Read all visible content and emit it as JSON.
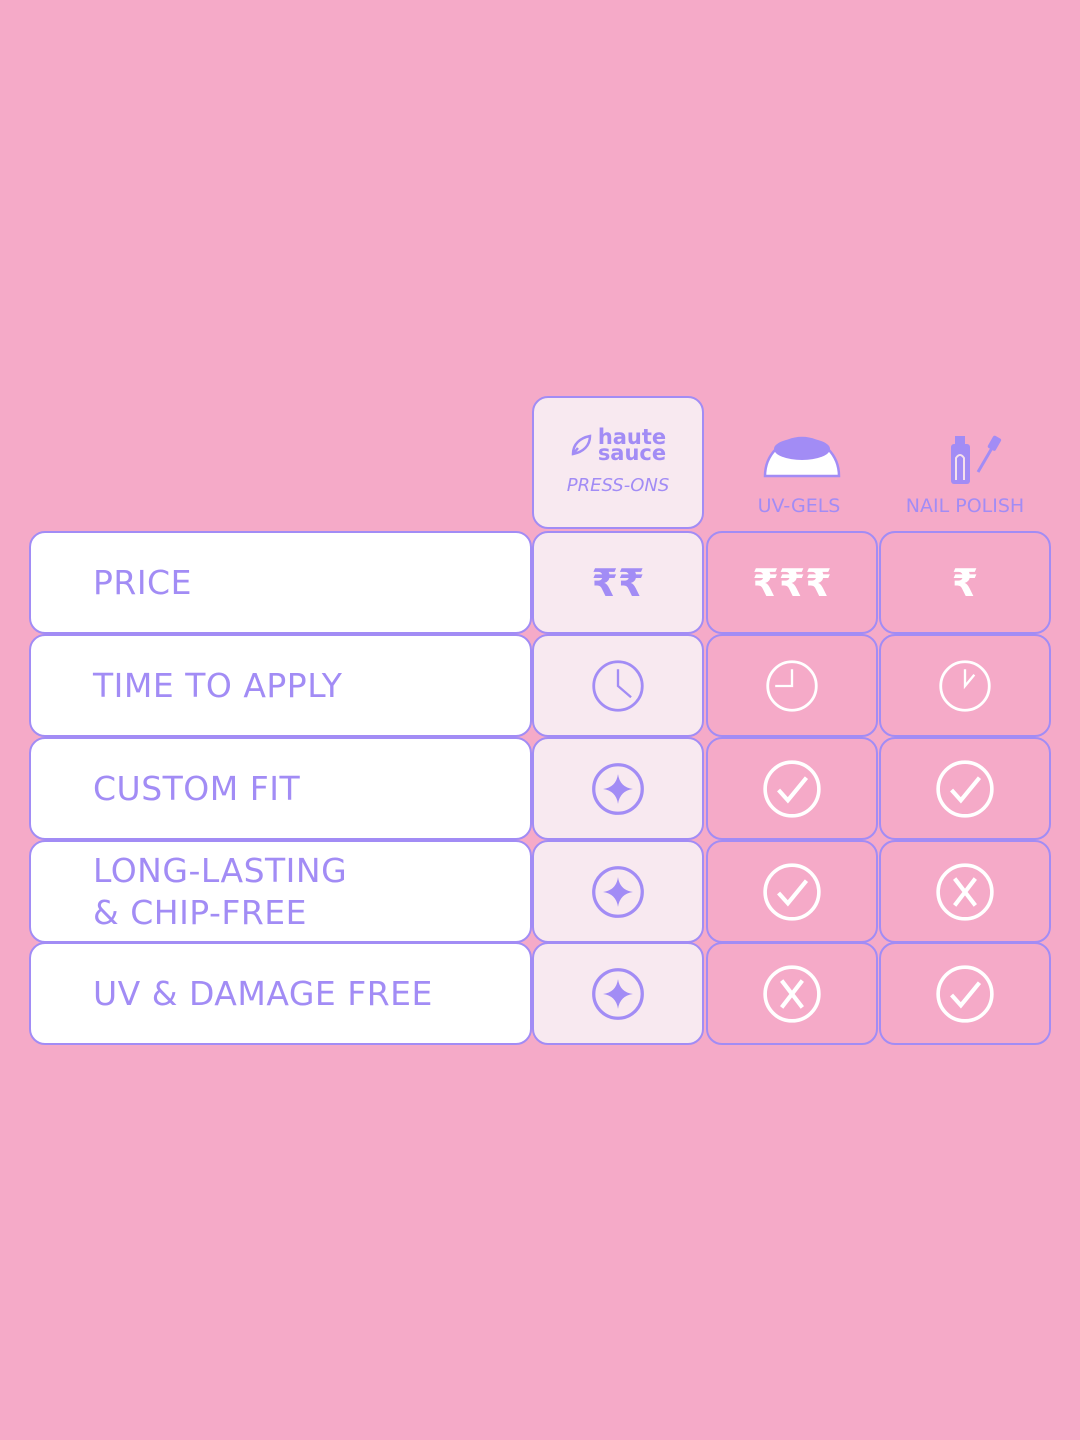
{
  "header": {
    "brand": {
      "logo_text": "haute sauce",
      "label": "PRESS-ONS"
    },
    "columns": [
      {
        "label": "UV-GELS",
        "icon": "uv-lamp-icon"
      },
      {
        "label": "NAIL POLISH",
        "icon": "nail-polish-icon"
      }
    ]
  },
  "rows": [
    {
      "label": "PRICE",
      "cells": [
        {
          "text": "₹₹"
        },
        {
          "text": "₹₹₹"
        },
        {
          "text": "₹"
        }
      ]
    },
    {
      "label": "TIME TO APPLY",
      "cells": [
        {
          "icon": "clock-icon"
        },
        {
          "icon": "clock-icon"
        },
        {
          "icon": "clock-icon"
        }
      ]
    },
    {
      "label": "CUSTOM FIT",
      "cells": [
        {
          "icon": "sparkle-icon"
        },
        {
          "icon": "check-icon"
        },
        {
          "icon": "check-icon"
        }
      ]
    },
    {
      "label": "LONG-LASTING\n& CHIP-FREE",
      "cells": [
        {
          "icon": "sparkle-icon"
        },
        {
          "icon": "check-icon"
        },
        {
          "icon": "cross-icon"
        }
      ]
    },
    {
      "label": "UV & DAMAGE FREE",
      "cells": [
        {
          "icon": "sparkle-icon"
        },
        {
          "icon": "cross-icon"
        },
        {
          "icon": "check-icon"
        }
      ]
    }
  ],
  "colors": {
    "background": "#f5aac8",
    "accent": "#a28cf5",
    "highlight_cell": "#f8e9f0",
    "label_cell": "#ffffff"
  }
}
